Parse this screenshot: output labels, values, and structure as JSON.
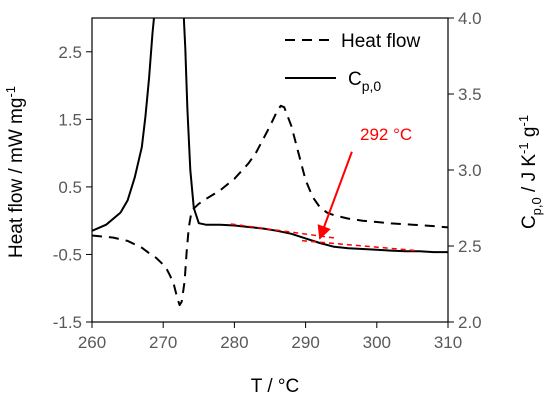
{
  "chart_data": {
    "type": "line",
    "x_axis": {
      "label": "T / °C",
      "range": [
        260,
        310
      ],
      "ticks": [
        260,
        270,
        280,
        290,
        300,
        310
      ]
    },
    "y_left": {
      "label_main": "Heat flow / mW mg",
      "label_sup": "-1",
      "range": [
        -1.5,
        3
      ],
      "ticks": [
        -1.5,
        -0.5,
        0.5,
        1.5,
        2.5
      ],
      "tick_labels": [
        "-1.5",
        "-0.5",
        "0.5",
        "1.5",
        "2.5"
      ]
    },
    "y_right": {
      "label_c": "C",
      "label_sub": "p,0",
      "label_unit": " / J K",
      "label_sup1": "-1",
      "label_g": " g",
      "label_sup2": "-1",
      "range": [
        2.0,
        4.0
      ],
      "ticks": [
        2.0,
        2.5,
        3.0,
        3.5,
        4.0
      ],
      "tick_labels": [
        "2.0",
        "2.5",
        "3.0",
        "3.5",
        "4.0"
      ]
    },
    "legend": {
      "position": "top-right",
      "heat_flow": "Heat flow",
      "cp_main": "C",
      "cp_sub": "p,0"
    },
    "series": [
      {
        "name": "Heat flow",
        "axis": "left",
        "style": "dashed",
        "color": "#000000",
        "x": [
          260,
          263,
          265,
          266,
          267,
          268,
          269,
          270,
          270.5,
          271,
          271.5,
          272,
          272.3,
          272.6,
          273,
          273.3,
          273.6,
          274,
          274.5,
          275,
          276,
          278,
          280,
          282,
          283,
          284,
          285,
          286,
          286.5,
          287,
          288,
          289,
          290,
          291,
          292,
          293,
          294,
          296,
          298,
          300,
          302,
          305,
          308,
          310
        ],
        "y": [
          -0.22,
          -0.25,
          -0.3,
          -0.35,
          -0.4,
          -0.48,
          -0.55,
          -0.65,
          -0.72,
          -0.82,
          -0.95,
          -1.15,
          -1.25,
          -1.2,
          -0.9,
          -0.45,
          -0.1,
          0.15,
          0.2,
          0.25,
          0.32,
          0.45,
          0.62,
          0.85,
          1.0,
          1.2,
          1.4,
          1.62,
          1.7,
          1.68,
          1.4,
          1.0,
          0.6,
          0.35,
          0.2,
          0.12,
          0.08,
          0.03,
          0.0,
          -0.02,
          -0.04,
          -0.06,
          -0.08,
          -0.1
        ]
      },
      {
        "name": "C",
        "axis": "right",
        "style": "solid",
        "color": "#000000",
        "x": [
          260,
          262,
          264,
          265,
          266,
          267,
          267.5,
          268,
          268.5,
          268.8,
          269.1,
          272.8,
          273.1,
          273.4,
          273.8,
          274.3,
          275,
          276,
          278,
          280,
          282,
          284,
          286,
          288,
          290,
          292,
          294,
          296,
          298,
          300,
          302,
          304,
          306,
          308,
          310
        ],
        "y": [
          2.6,
          2.64,
          2.72,
          2.8,
          2.95,
          3.15,
          3.35,
          3.6,
          3.9,
          4.05,
          4.1,
          4.1,
          3.8,
          3.4,
          3.0,
          2.75,
          2.65,
          2.64,
          2.64,
          2.635,
          2.625,
          2.615,
          2.6,
          2.58,
          2.55,
          2.52,
          2.495,
          2.485,
          2.48,
          2.475,
          2.47,
          2.465,
          2.465,
          2.46,
          2.46
        ]
      }
    ],
    "annotation": {
      "text": "292 °C",
      "color": "#ff0000",
      "arrow_from": [
        296.5,
        3.12
      ],
      "arrow_to": [
        292.0,
        2.55
      ],
      "tangent_lines": [
        {
          "from": [
            279.5,
            2.645
          ],
          "to": [
            294.5,
            2.55
          ]
        },
        {
          "from": [
            289.5,
            2.535
          ],
          "to": [
            305.5,
            2.47
          ]
        }
      ]
    }
  }
}
